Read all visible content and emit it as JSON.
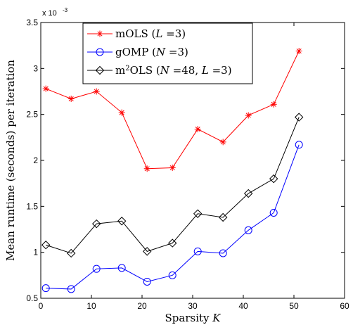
{
  "chart_data": {
    "type": "line",
    "title": "",
    "xlabel": "Sparsity K",
    "ylabel": "Mean runtime (seconds) per iteration",
    "xlim": [
      0,
      60
    ],
    "ylim": [
      0.5,
      3.5
    ],
    "x_ticks": [
      0,
      10,
      20,
      30,
      40,
      50,
      60
    ],
    "y_ticks": [
      0.5,
      1,
      1.5,
      2,
      2.5,
      3,
      3.5
    ],
    "y_tick_labels": [
      "0.5",
      "1",
      "1.5",
      "2",
      "2.5",
      "3",
      "3.5"
    ],
    "y_exponent_label": "x 10",
    "y_exponent_power": "-3",
    "grid": false,
    "legend_position": "top-center",
    "x": [
      1,
      6,
      11,
      16,
      21,
      26,
      31,
      36,
      41,
      46,
      51
    ],
    "series": [
      {
        "legend_parts": [
          "mOLS (",
          "L",
          " =3)"
        ],
        "color": "#ff0000",
        "marker": "asterisk",
        "values": [
          2.78,
          2.67,
          2.75,
          2.52,
          1.91,
          1.92,
          2.34,
          2.2,
          2.49,
          2.61,
          3.19
        ]
      },
      {
        "legend_parts": [
          "gOMP (",
          "N",
          " =3)"
        ],
        "color": "#0000ff",
        "marker": "circle",
        "values": [
          0.61,
          0.6,
          0.82,
          0.83,
          0.68,
          0.75,
          1.01,
          0.99,
          1.24,
          1.43,
          2.17
        ]
      },
      {
        "legend_parts": [
          "m",
          "2",
          "OLS (",
          "N",
          " =48, ",
          "L",
          " =3)"
        ],
        "color": "#000000",
        "marker": "diamond",
        "values": [
          1.08,
          0.99,
          1.31,
          1.34,
          1.01,
          1.1,
          1.42,
          1.38,
          1.64,
          1.8,
          2.47
        ]
      }
    ]
  }
}
